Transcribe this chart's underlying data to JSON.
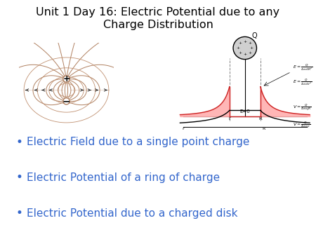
{
  "title_line1": "Unit 1 Day 16: Electric Potential due to any",
  "title_line2": "Charge Distribution",
  "bullet1": "Electric Field due to a single point charge",
  "bullet2": "Electric Potential of a ring of charge",
  "bullet3": "Electric Potential due to a charged disk",
  "title_fontsize": 11.5,
  "bullet_fontsize": 11,
  "bullet_color": "#3366cc",
  "title_color": "#000000",
  "bg_color": "#ffffff",
  "line_color": "#b08060",
  "eq_color": "#c09070"
}
